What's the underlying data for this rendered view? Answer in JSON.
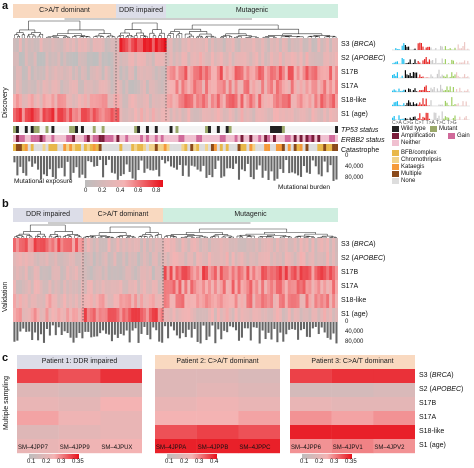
{
  "panel_a": {
    "letter": "a",
    "side_label": "Discovery",
    "groups": [
      "C>A/T dominant",
      "DDR impaired",
      "Mutagenic"
    ],
    "group_colors": [
      "#f9d9c0",
      "#dcdde8",
      "#cfeee0"
    ],
    "rows": [
      {
        "pre": "S3 (",
        "italic": "BRCA",
        "post": ")"
      },
      {
        "pre": "S2 (",
        "italic": "APOBEC",
        "post": ")"
      },
      {
        "pre": "S17B",
        "italic": "",
        "post": ""
      },
      {
        "pre": "S17A",
        "italic": "",
        "post": ""
      },
      {
        "pre": "S18-like",
        "italic": "",
        "post": ""
      },
      {
        "pre": "S1 (age)",
        "italic": "",
        "post": ""
      }
    ],
    "tp53_label": "TP53 status",
    "erbb2_label": "ERBB2 status",
    "catastrophe_label": "Catastrophe",
    "burden_ticks": [
      "0",
      "40,000",
      "80,000"
    ],
    "burden_label": "Mutational burden",
    "signature_bottom": "C>A C>G C>T T>A T>C T>G",
    "legend_status": [
      {
        "label": "Wild type",
        "color": "#222222"
      },
      {
        "label": "Mutant",
        "color": "#9aa86a"
      },
      {
        "label": "Amplification",
        "color": "#7a1d3a"
      },
      {
        "label": "Gain",
        "color": "#d06a9a"
      },
      {
        "label": "Neither",
        "color": "#f0c0d0"
      }
    ],
    "legend_catastrophe": [
      {
        "label": "BFB/complex",
        "color": "#e8b84a"
      },
      {
        "label": "Chromothripsis",
        "color": "#f2d38a"
      },
      {
        "label": "Kataegis",
        "color": "#f59a3a"
      },
      {
        "label": "Multiple",
        "color": "#8a4a1a"
      },
      {
        "label": "None",
        "color": "#dddddd"
      }
    ],
    "exposure_label": "Mutational exposure",
    "exposure_ticks": [
      "0",
      "0.2",
      "0.4",
      "0.6",
      "0.8"
    ]
  },
  "panel_b": {
    "letter": "b",
    "side_label": "Validation",
    "groups": [
      "DDR impaired",
      "C>A/T dominant",
      "Mutagenic"
    ],
    "group_colors": [
      "#dcdde8",
      "#f9d9c0",
      "#cfeee0"
    ],
    "rows": [
      {
        "pre": "S3 (",
        "italic": "BRCA",
        "post": ")"
      },
      {
        "pre": "S2 (",
        "italic": "APOBEC",
        "post": ")"
      },
      {
        "pre": "S17B",
        "italic": "",
        "post": ""
      },
      {
        "pre": "S17A",
        "italic": "",
        "post": ""
      },
      {
        "pre": "S18-like",
        "italic": "",
        "post": ""
      },
      {
        "pre": "S1 (age)",
        "italic": "",
        "post": ""
      }
    ],
    "burden_ticks": [
      "0",
      "40,000",
      "80,000"
    ]
  },
  "panel_c": {
    "letter": "c",
    "side_label": "Multiple sampling",
    "patients": [
      {
        "title": "Patient 1: DDR impaired",
        "title_color": "#dcdde8",
        "samples": [
          "SM–4JPP7",
          "SM–4JPP9",
          "SM–4JPUX"
        ],
        "scale": [
          "0.1",
          "0.2",
          "0.3",
          "0.35"
        ]
      },
      {
        "title": "Patient 2: C>A/T dominant",
        "title_color": "#f9d9c0",
        "samples": [
          "SM–4JPPA",
          "SM–4JPPB",
          "SM–4JPPC"
        ],
        "scale": [
          "0.1",
          "0.2",
          "0.3",
          "0.4"
        ]
      },
      {
        "title": "Patient 3: C>A/T dominant",
        "title_color": "#f9d9c0",
        "samples": [
          "SM–4JPP6",
          "SM–4JPV1",
          "SM–4JPV2"
        ],
        "scale": [
          "0.1",
          "0.2",
          "0.3",
          "0.35"
        ]
      }
    ],
    "rows": [
      {
        "pre": "S3 (",
        "italic": "BRCA",
        "post": ")"
      },
      {
        "pre": "S2 (",
        "italic": "APOBEC",
        "post": ")"
      },
      {
        "pre": "S17B",
        "italic": "",
        "post": ""
      },
      {
        "pre": "S17A",
        "italic": "",
        "post": ""
      },
      {
        "pre": "S18-like",
        "italic": "",
        "post": ""
      },
      {
        "pre": "S1 (age)",
        "italic": "",
        "post": ""
      }
    ]
  }
}
